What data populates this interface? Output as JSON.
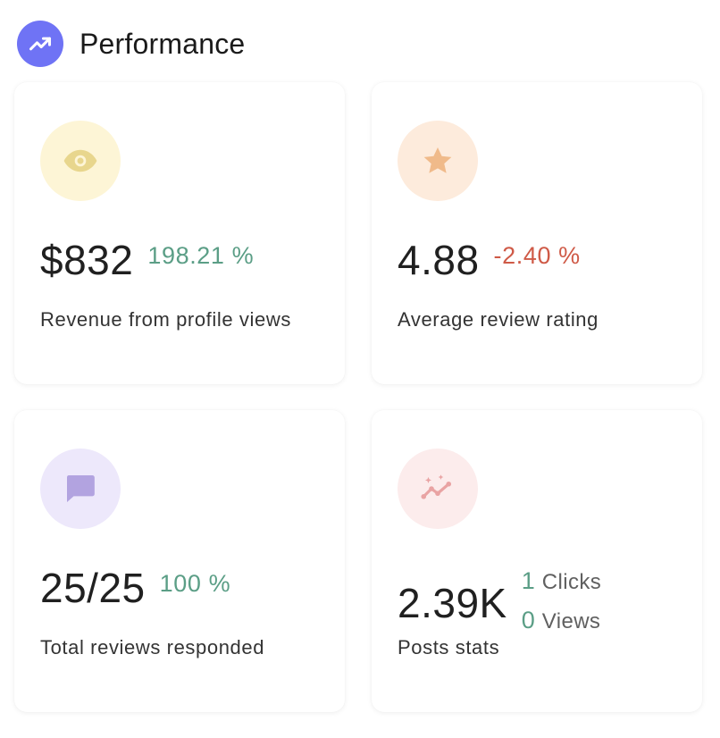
{
  "header": {
    "title": "Performance",
    "icon": "trending-up-icon",
    "accent": "#6f73f5"
  },
  "cards": [
    {
      "icon": "eye-icon",
      "icon_bg": "#fdf5d6",
      "icon_color": "#e8d68d",
      "value": "$832",
      "change": "198.21 %",
      "change_status": "positive",
      "label": "Revenue from profile views"
    },
    {
      "icon": "star-icon",
      "icon_bg": "#fdebdc",
      "icon_color": "#f0ba8a",
      "value": "4.88",
      "change": "-2.40 %",
      "change_status": "negative",
      "label": "Average review rating"
    },
    {
      "icon": "message-icon",
      "icon_bg": "#ede8fb",
      "icon_color": "#b2a3e0",
      "value": "25/25",
      "change": "100 %",
      "change_status": "positive",
      "label": "Total reviews responded"
    },
    {
      "icon": "sparkle-chart-icon",
      "icon_bg": "#fcecec",
      "icon_color": "#e9a3a3",
      "value": "2.39K",
      "stats": [
        {
          "value": "1",
          "label": "Clicks"
        },
        {
          "value": "0",
          "label": "Views"
        }
      ],
      "label": "Posts stats"
    }
  ],
  "colors": {
    "positive": "#5b9e86",
    "negative": "#cf5a47"
  }
}
